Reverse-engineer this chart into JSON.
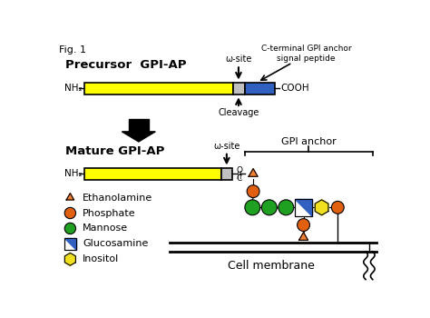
{
  "fig_label": "Fig. 1",
  "bg_color": "#ffffff",
  "precursor_label": "Precursor  GPI-AP",
  "mature_label": "Mature GPI-AP",
  "nh2_label": "NH₂",
  "cooh_label": "COOH",
  "omega_site_label": "ω-site",
  "cleavage_label": "Cleavage",
  "c_terminal_label": "C-terminal GPI anchor\nsignal peptide",
  "gpi_anchor_label": "GPI anchor",
  "cell_membrane_label": "Cell membrane",
  "legend_items": [
    {
      "shape": "triangle",
      "color": "#f08030",
      "label": "Ethanolamine"
    },
    {
      "shape": "circle",
      "color": "#e06010",
      "label": "Phosphate"
    },
    {
      "shape": "circle",
      "color": "#20a020",
      "label": "Mannose"
    },
    {
      "shape": "glucosamine",
      "color": "#3060c0",
      "label": "Glucosamine"
    },
    {
      "shape": "hexagon",
      "color": "#f0e020",
      "label": "Inositol"
    }
  ],
  "yellow_color": "#ffff00",
  "gray_color": "#c0c0c0",
  "blue_color": "#3060c0",
  "orange_color": "#f08030",
  "red_orange": "#e06010",
  "green_color": "#20a020",
  "yellow_hex": "#f0e020"
}
